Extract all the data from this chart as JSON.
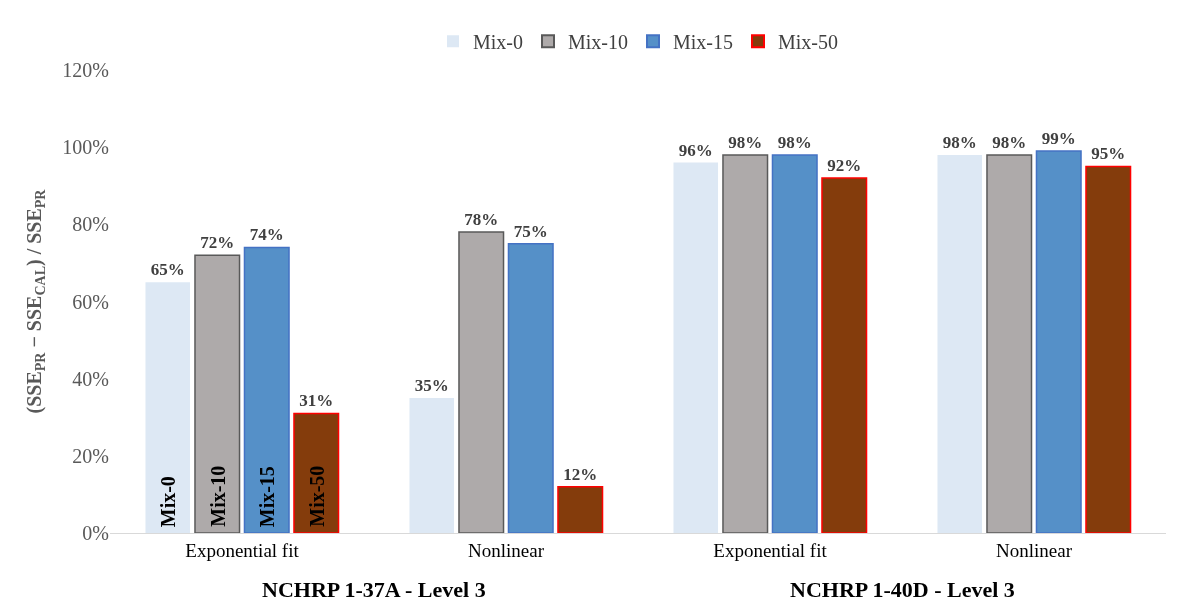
{
  "chart_data": {
    "type": "bar",
    "categories": [
      "Exponential fit",
      "Nonlinear",
      "Exponential fit",
      "Nonlinear"
    ],
    "ylabel": "(SSE$_{PR}$ − SSE$_{CAL}$) / SSE$_{PR}$",
    "ylim": [
      0,
      120
    ],
    "yticks": [
      {
        "value": 0,
        "label": "0%"
      },
      {
        "value": 20,
        "label": "20%"
      },
      {
        "value": 40,
        "label": "40%"
      },
      {
        "value": 60,
        "label": "60%"
      },
      {
        "value": 80,
        "label": "80%"
      },
      {
        "value": 100,
        "label": "100%"
      },
      {
        "value": 120,
        "label": "120%"
      }
    ],
    "series": [
      {
        "name": "Mix-0",
        "color": "#dde8f4",
        "values": [
          65,
          35,
          96,
          98
        ],
        "value_labels": [
          "65%",
          "35%",
          "96%",
          "98%"
        ]
      },
      {
        "name": "Mix-10",
        "color": "#aeaaaa",
        "values": [
          72,
          78,
          98,
          98
        ],
        "value_labels": [
          "72%",
          "78%",
          "98%",
          "98%"
        ]
      },
      {
        "name": "Mix-15",
        "color": "#5590c8",
        "values": [
          74,
          75,
          98,
          99
        ],
        "value_labels": [
          "74%",
          "75%",
          "98%",
          "99%"
        ]
      },
      {
        "name": "Mix-50",
        "color": "#843c0c",
        "values": [
          31,
          12,
          92,
          95
        ],
        "value_labels": [
          "31%",
          "12%",
          "92%",
          "95%"
        ]
      }
    ],
    "annotations": [
      "Mix-0",
      "Mix-10",
      "Mix-15",
      "Mix-50",
      "NCHRP 1-37A - Level 3",
      "NCHRP 1-40D - Level 3"
    ],
    "legend": "top"
  }
}
